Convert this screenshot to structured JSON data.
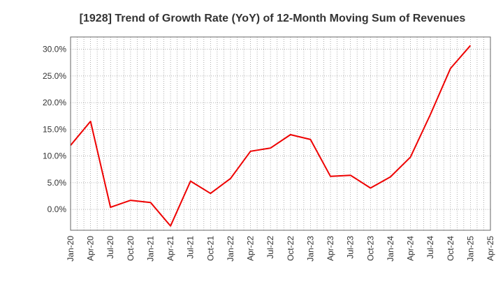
{
  "chart_data": {
    "type": "line",
    "title": "[1928]  Trend of Growth Rate (YoY) of 12-Month Moving Sum of Revenues",
    "xlabel": "",
    "ylabel": "",
    "x_ticks": [
      "Jan-20",
      "Apr-20",
      "Jul-20",
      "Oct-20",
      "Jan-21",
      "Apr-21",
      "Jul-21",
      "Oct-21",
      "Jan-22",
      "Apr-22",
      "Jul-22",
      "Oct-22",
      "Jan-23",
      "Apr-23",
      "Jul-23",
      "Oct-23",
      "Jan-24",
      "Apr-24",
      "Jul-24",
      "Oct-24",
      "Jan-25",
      "Apr-25"
    ],
    "y_ticks": [
      "0.0%",
      "5.0%",
      "10.0%",
      "15.0%",
      "20.0%",
      "25.0%",
      "30.0%"
    ],
    "y_tick_values": [
      0,
      5,
      10,
      15,
      20,
      25,
      30
    ],
    "ylim": [
      -3.9,
      32.3
    ],
    "grid": true,
    "series": [
      {
        "color": "#ee0000",
        "x": [
          "Jan-20",
          "Apr-20",
          "Jul-20",
          "Oct-20",
          "Jan-21",
          "Apr-21",
          "Jul-21",
          "Oct-21",
          "Jan-22",
          "Apr-22",
          "Jul-22",
          "Oct-22",
          "Jan-23",
          "Apr-23",
          "Jul-23",
          "Oct-23",
          "Jan-24",
          "Apr-24",
          "Jul-24",
          "Oct-24",
          "Jan-25"
        ],
        "values": [
          12.0,
          16.5,
          0.4,
          1.7,
          1.3,
          -3.1,
          5.3,
          3.0,
          5.8,
          10.9,
          11.5,
          14.0,
          13.1,
          6.2,
          6.4,
          4.0,
          6.1,
          9.8,
          17.8,
          26.4,
          30.7
        ]
      }
    ]
  }
}
